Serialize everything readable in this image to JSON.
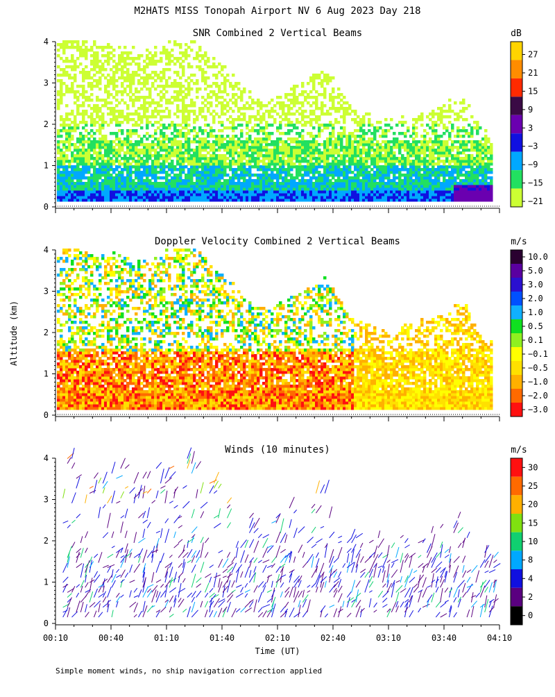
{
  "figure": {
    "title": "M2HATS MISS Tonopah Airport NV   6 Aug 2023 Day 218",
    "ylabel": "Altitude (km)",
    "xlabel": "Time (UT)",
    "footnote": "Simple moment winds, no ship navigation correction applied"
  },
  "chart_data": [
    {
      "type": "heatmap",
      "title": "SNR Combined 2 Vertical Beams",
      "colorbar_label": "dB",
      "colorbar_ticks": [
        "27",
        "21",
        "15",
        "9",
        "3",
        "−3",
        "−9",
        "−15",
        "−21"
      ],
      "colorbar_colors": [
        "#ffd400",
        "#ff8c00",
        "#ff2a00",
        "#3a0a45",
        "#6a00b0",
        "#1010e0",
        "#00a8ff",
        "#22e060",
        "#ccff33"
      ],
      "ylim": [
        0,
        4
      ],
      "yticks": [
        "0",
        "1",
        "2",
        "3",
        "4"
      ],
      "x_range_minutes": [
        10,
        250
      ]
    },
    {
      "type": "heatmap",
      "title": "Doppler Velocity Combined 2 Vertical Beams",
      "colorbar_label": "m/s",
      "colorbar_ticks": [
        "10.0",
        "5.0",
        "3.0",
        "2.0",
        "1.0",
        "0.5",
        "0.1",
        "−0.1",
        "−0.5",
        "−1.0",
        "−2.0",
        "−3.0"
      ],
      "colorbar_colors": [
        "#2a0030",
        "#5a00a0",
        "#2a10d0",
        "#0050ff",
        "#10b0ff",
        "#10e020",
        "#90f020",
        "#ffff00",
        "#ffe000",
        "#ffb000",
        "#ff6a00",
        "#ff1010"
      ],
      "ylim": [
        0,
        4
      ],
      "yticks": [
        "0",
        "1",
        "2",
        "3",
        "4"
      ],
      "x_range_minutes": [
        10,
        250
      ]
    },
    {
      "type": "scatter",
      "title": "Winds (10 minutes)",
      "colorbar_label": "m/s",
      "colorbar_ticks": [
        "30",
        "25",
        "20",
        "15",
        "10",
        "8",
        "4",
        "2",
        "0"
      ],
      "colorbar_colors": [
        "#ff1010",
        "#ff6a00",
        "#ffb000",
        "#80e010",
        "#10d070",
        "#00a8ff",
        "#1010e0",
        "#5a0080",
        "#000000"
      ],
      "ylim": [
        0,
        4
      ],
      "yticks": [
        "0",
        "1",
        "2",
        "3",
        "4"
      ],
      "x_range_minutes": [
        10,
        250
      ],
      "xticks": [
        "00:10",
        "00:40",
        "01:10",
        "01:40",
        "02:10",
        "02:40",
        "03:10",
        "03:40",
        "04:10"
      ]
    }
  ]
}
